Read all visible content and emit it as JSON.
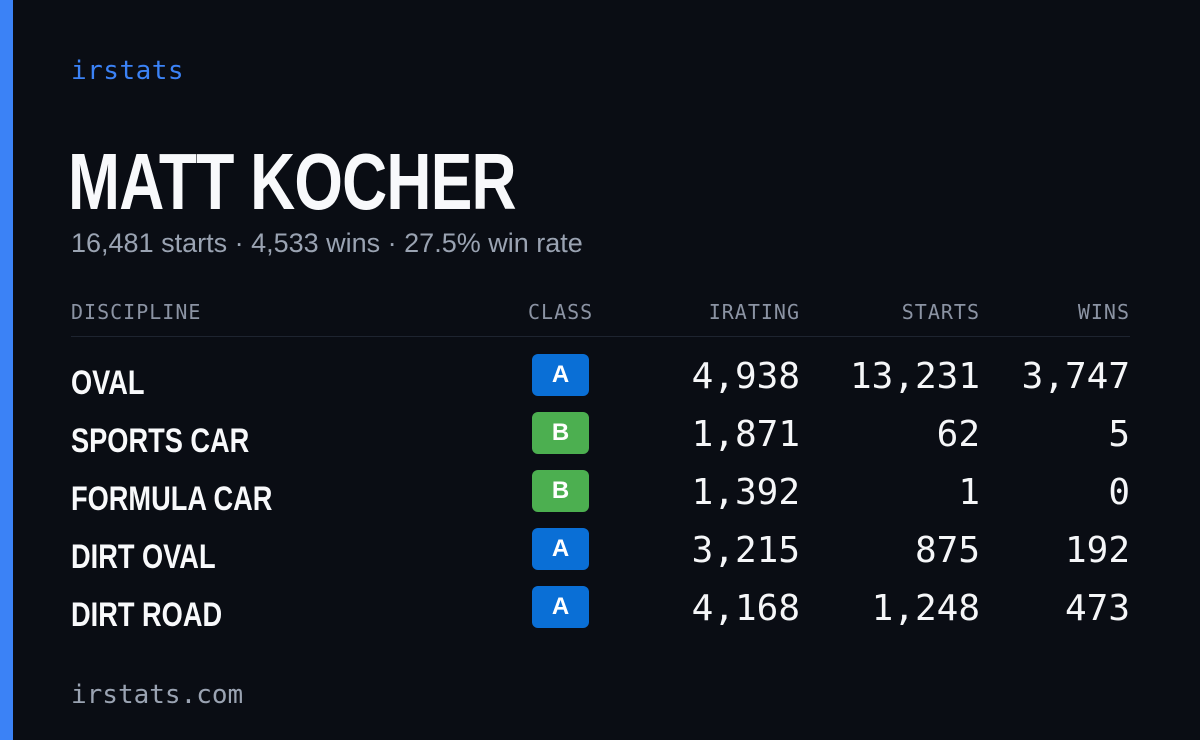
{
  "brand": "irstats",
  "driver": {
    "name": "MATT KOCHER",
    "summary": "16,481 starts · 4,533 wins · 27.5% win rate"
  },
  "table": {
    "headers": {
      "discipline": "DISCIPLINE",
      "class": "CLASS",
      "irating": "IRATING",
      "starts": "STARTS",
      "wins": "WINS"
    },
    "class_colors": {
      "A": "#0a6fd6",
      "B": "#4caf50"
    },
    "rows": [
      {
        "discipline": "OVAL",
        "class": "A",
        "irating": "4,938",
        "starts": "13,231",
        "wins": "3,747"
      },
      {
        "discipline": "SPORTS CAR",
        "class": "B",
        "irating": "1,871",
        "starts": "62",
        "wins": "5"
      },
      {
        "discipline": "FORMULA CAR",
        "class": "B",
        "irating": "1,392",
        "starts": "1",
        "wins": "0"
      },
      {
        "discipline": "DIRT OVAL",
        "class": "A",
        "irating": "3,215",
        "starts": "875",
        "wins": "192"
      },
      {
        "discipline": "DIRT ROAD",
        "class": "A",
        "irating": "4,168",
        "starts": "1,248",
        "wins": "473"
      }
    ]
  },
  "footer": "irstats.com",
  "colors": {
    "accent": "#3b82f6",
    "background": "#0a0d14"
  }
}
